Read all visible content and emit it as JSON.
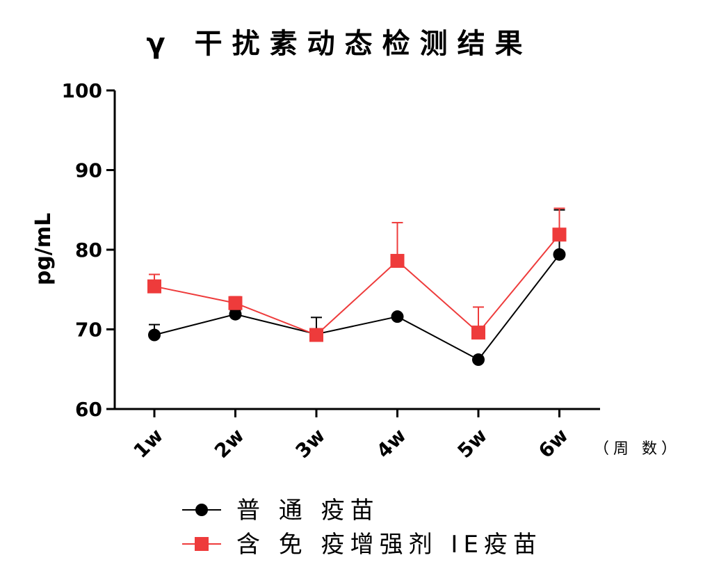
{
  "chart_data": {
    "type": "line",
    "title": "γ 干扰素动态检测结果",
    "ylabel": "pg/mL",
    "xlabel": "",
    "x_unit_note": "（周 数）",
    "categories": [
      "1w",
      "2w",
      "3w",
      "4w",
      "5w",
      "6w"
    ],
    "ylim": [
      60,
      100
    ],
    "yticks": [
      "60",
      "70",
      "80",
      "90",
      "100"
    ],
    "grid": false,
    "legend_position": "bottom-center",
    "series": [
      {
        "name": "普 通 疫苗",
        "color": "#000000",
        "marker": "circle",
        "values": [
          69.3,
          71.9,
          69.4,
          71.6,
          66.2,
          79.4
        ],
        "error": [
          1.3,
          0.5,
          2.1,
          0,
          0,
          5.6
        ]
      },
      {
        "name": "含 免 疫增强剂 IE疫苗",
        "color": "#ee3b3b",
        "marker": "square",
        "values": [
          75.4,
          73.3,
          69.3,
          78.6,
          69.6,
          81.9
        ],
        "error": [
          1.5,
          0.8,
          0,
          4.8,
          3.2,
          3.3
        ]
      }
    ]
  }
}
